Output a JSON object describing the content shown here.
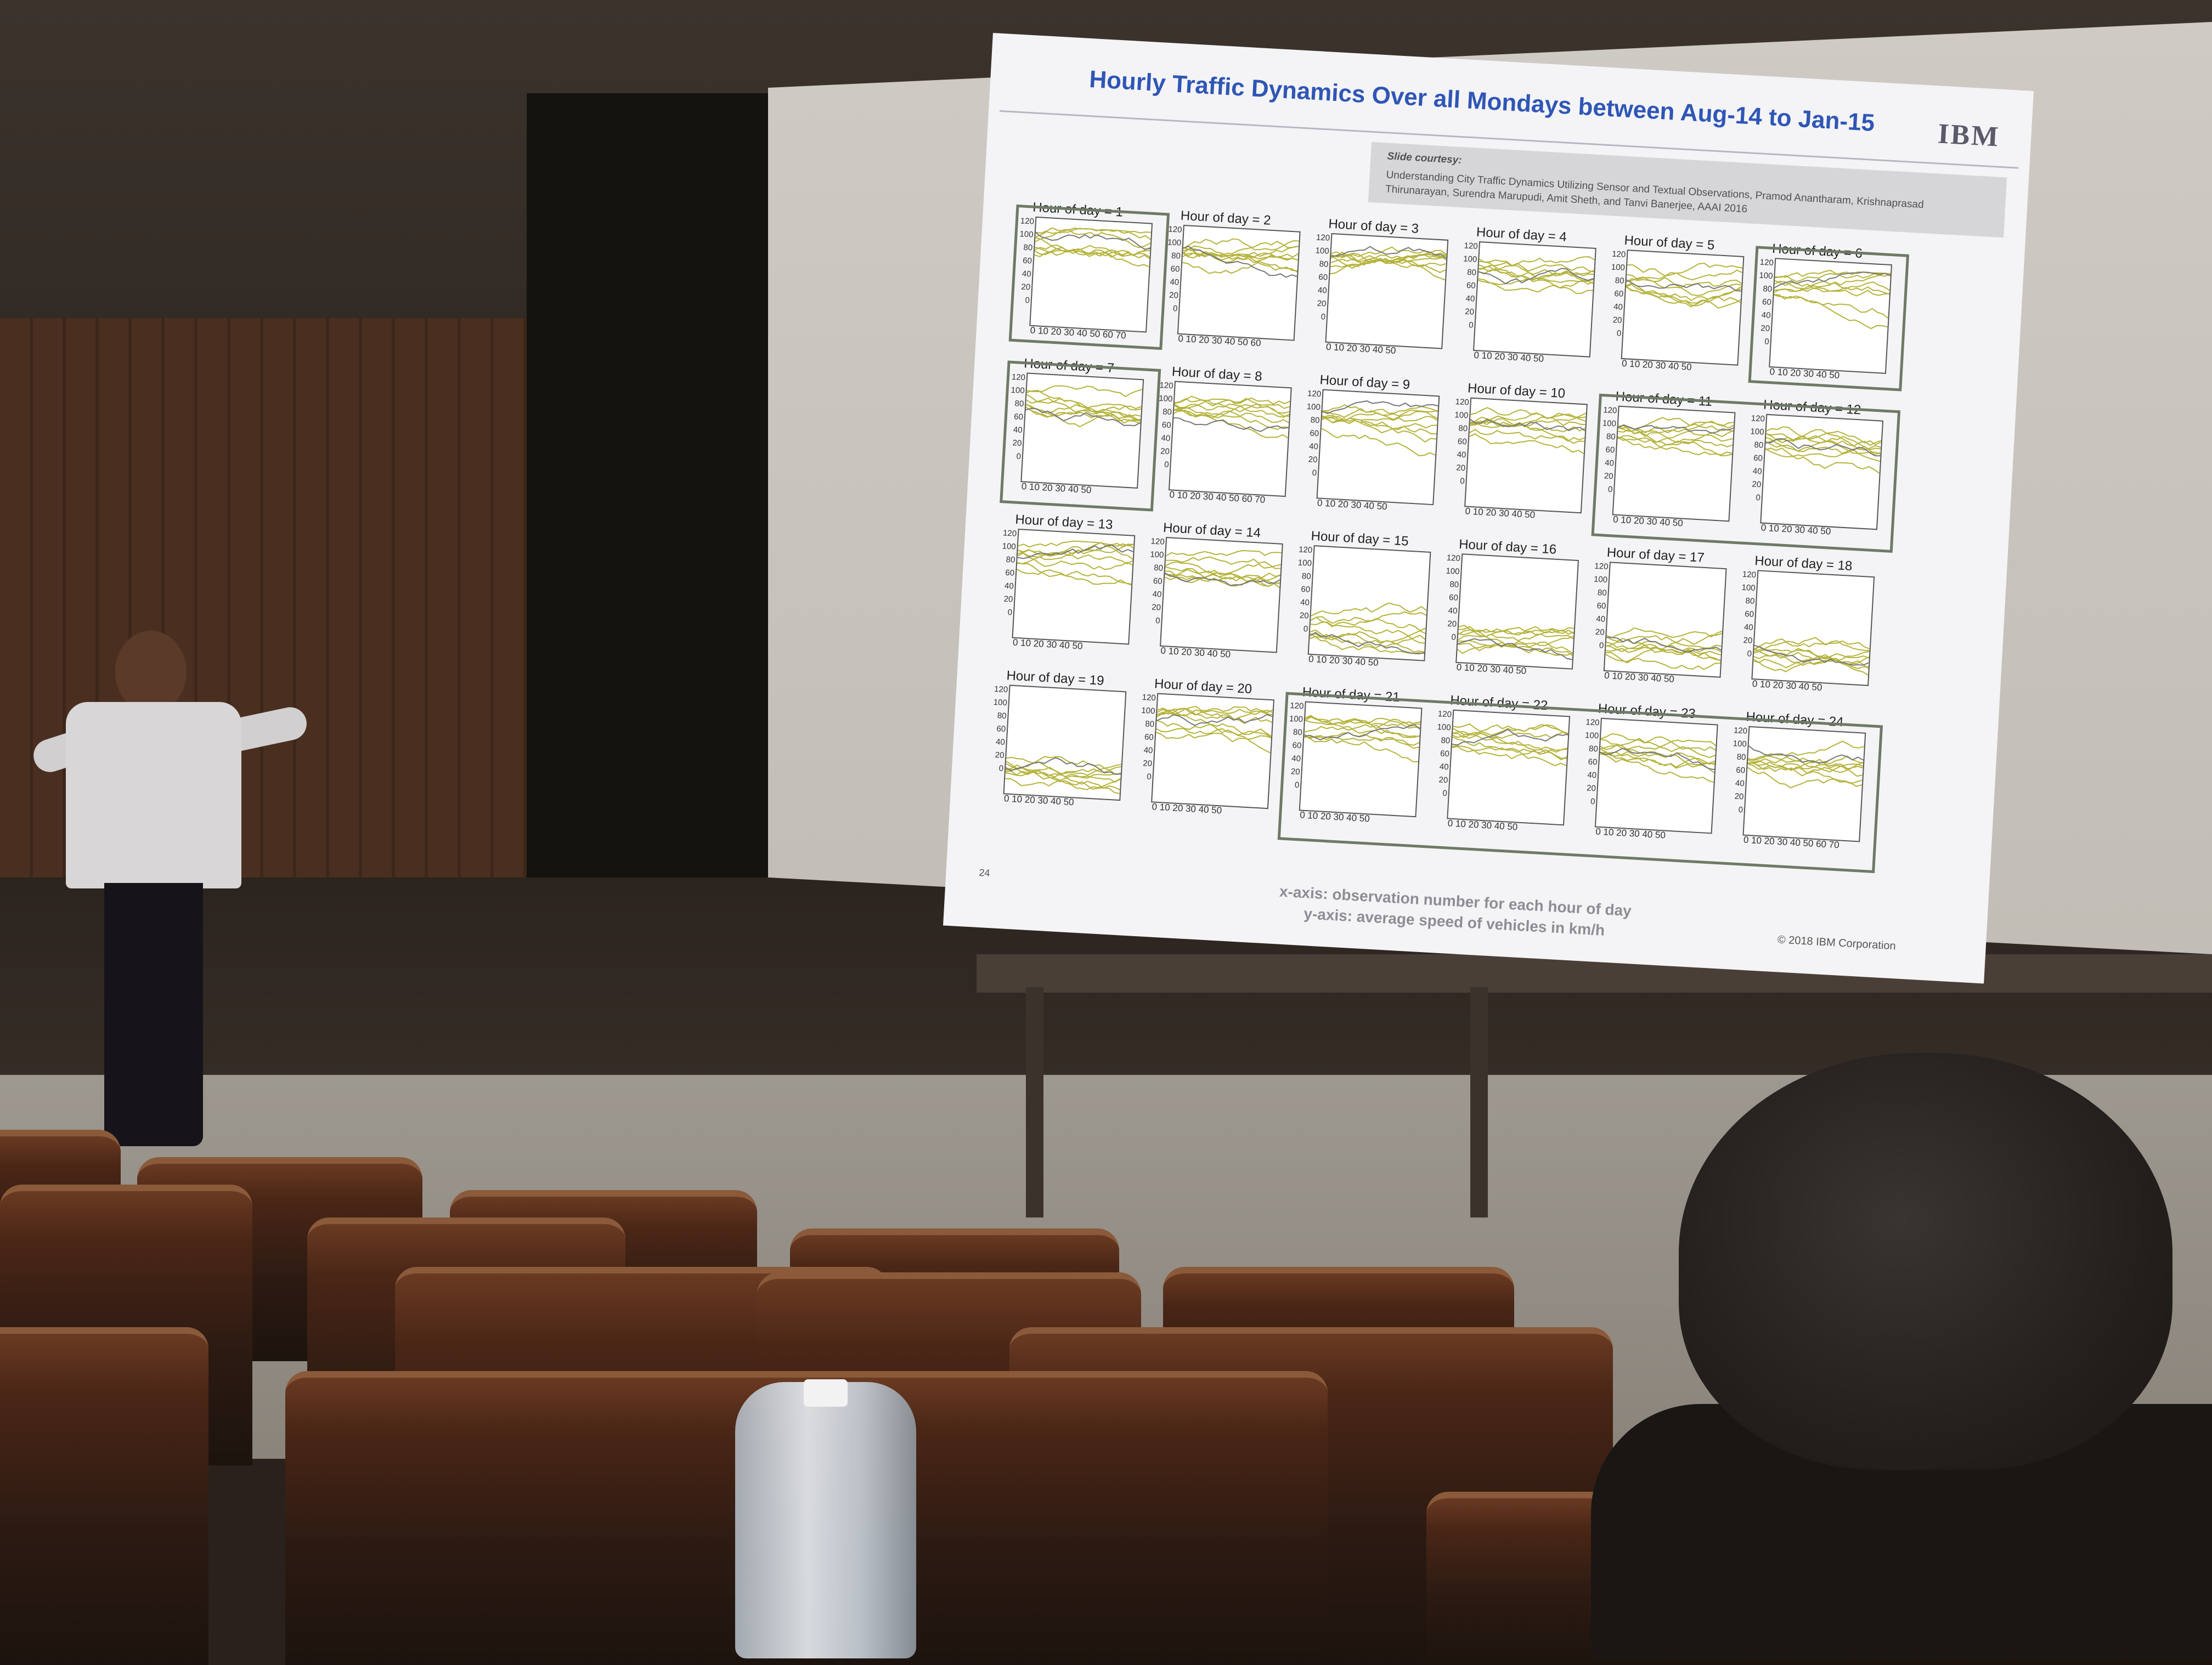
{
  "slide": {
    "title": "Hourly Traffic Dynamics Over all Mondays between Aug-14 to Jan-15",
    "logo": "IBM",
    "courtesy_label": "Slide courtesy:",
    "courtesy_citation": "Understanding City Traffic Dynamics Utilizing Sensor and Textual Observations, Pramod Anantharam, Krishnaprasad Thirunarayan, Surendra Marupudi, Amit Sheth, and Tanvi Banerjee, AAAI 2016",
    "page_number": "24",
    "x_axis_note": "x-axis: observation number for each hour of day",
    "y_axis_note": "y-axis: average speed of vehicles in km/h",
    "copyright": "© 2018 IBM Corporation",
    "accent_color": "#2f56b6",
    "series_color": "#b5b33a",
    "y_ticks": "120\n100\n80\n60\n40\n20\n0",
    "panels": [
      {
        "title": "Hour of day = 1",
        "xticks": "0 10 20 30 40 50 60 70"
      },
      {
        "title": "Hour of day = 2",
        "xticks": "0 10 20 30 40 50 60"
      },
      {
        "title": "Hour of day = 3",
        "xticks": "0 10 20 30 40 50"
      },
      {
        "title": "Hour of day = 4",
        "xticks": "0 10 20 30 40 50"
      },
      {
        "title": "Hour of day = 5",
        "xticks": "0 10 20 30 40 50"
      },
      {
        "title": "Hour of day = 6",
        "xticks": "0 10 20 30 40 50"
      },
      {
        "title": "Hour of day = 7",
        "xticks": "0 10 20 30 40 50"
      },
      {
        "title": "Hour of day = 8",
        "xticks": "0 10 20 30 40 50 60 70"
      },
      {
        "title": "Hour of day = 9",
        "xticks": "0 10 20 30 40 50"
      },
      {
        "title": "Hour of day = 10",
        "xticks": "0 10 20 30 40 50"
      },
      {
        "title": "Hour of day = 11",
        "xticks": "0 10 20 30 40 50"
      },
      {
        "title": "Hour of day = 12",
        "xticks": "0 10 20 30 40 50"
      },
      {
        "title": "Hour of day = 13",
        "xticks": "0 10 20 30 40 50"
      },
      {
        "title": "Hour of day = 14",
        "xticks": "0 10 20 30 40 50"
      },
      {
        "title": "Hour of day = 15",
        "xticks": "0 10 20 30 40 50"
      },
      {
        "title": "Hour of day = 16",
        "xticks": "0 10 20 30 40 50"
      },
      {
        "title": "Hour of day = 17",
        "xticks": "0 10 20 30 40 50"
      },
      {
        "title": "Hour of day = 18",
        "xticks": "0 10 20 30 40 50"
      },
      {
        "title": "Hour of day = 19",
        "xticks": "0 10 20 30 40 50"
      },
      {
        "title": "Hour of day = 20",
        "xticks": "0 10 20 30 40 50"
      },
      {
        "title": "Hour of day = 21",
        "xticks": "0 10 20 30 40 50"
      },
      {
        "title": "Hour of day = 22",
        "xticks": "0 10 20 30 40 50"
      },
      {
        "title": "Hour of day = 23",
        "xticks": "0 10 20 30 40 50"
      },
      {
        "title": "Hour of day = 24",
        "xticks": "0 10 20 30 40 50 60 70"
      }
    ]
  }
}
